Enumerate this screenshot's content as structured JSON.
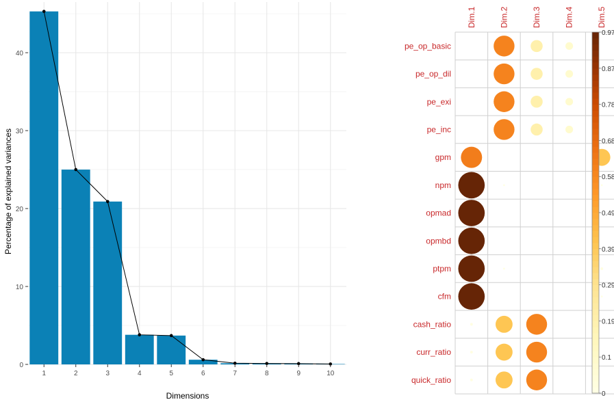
{
  "chart_data": [
    {
      "type": "bar",
      "xlabel": "Dimensions",
      "ylabel": "Percentage of explained variances",
      "categories": [
        "1",
        "2",
        "3",
        "4",
        "5",
        "6",
        "7",
        "8",
        "9",
        "10"
      ],
      "values": [
        45.3,
        25.0,
        20.9,
        3.8,
        3.7,
        0.6,
        0.15,
        0.12,
        0.1,
        0.05
      ],
      "line_overlay": true,
      "ylim": [
        0,
        46.5
      ],
      "yticks": [
        0,
        10,
        20,
        30,
        40
      ],
      "grid": true,
      "colors": {
        "bar": "#0B81B6",
        "line": "#000000"
      }
    },
    {
      "type": "heatmap",
      "style": "circle correlation plot",
      "columns": [
        "Dim.1",
        "Dim.2",
        "Dim.3",
        "Dim.4",
        "Dim.5"
      ],
      "rows": [
        "pe_op_basic",
        "pe_op_dil",
        "pe_exi",
        "pe_inc",
        "gpm",
        "npm",
        "opmad",
        "opmbd",
        "ptpm",
        "cfm",
        "cash_ratio",
        "curr_ratio",
        "quick_ratio"
      ],
      "values": [
        [
          0.0,
          0.6,
          0.2,
          0.08,
          0.0
        ],
        [
          0.0,
          0.6,
          0.2,
          0.08,
          0.0
        ],
        [
          0.0,
          0.6,
          0.2,
          0.08,
          0.0
        ],
        [
          0.0,
          0.6,
          0.2,
          0.08,
          0.0
        ],
        [
          0.62,
          0.0,
          0.0,
          0.0,
          0.4
        ],
        [
          0.97,
          0.005,
          0.0,
          0.0,
          0.005
        ],
        [
          0.97,
          0.0,
          0.0,
          0.0,
          0.0
        ],
        [
          0.97,
          0.0,
          0.0,
          0.0,
          0.0
        ],
        [
          0.97,
          0.005,
          0.0,
          0.0,
          0.01
        ],
        [
          0.97,
          0.0,
          0.0,
          0.0,
          0.005
        ],
        [
          0.01,
          0.4,
          0.6,
          0.0,
          0.0
        ],
        [
          0.01,
          0.4,
          0.6,
          0.0,
          0.0
        ],
        [
          0.01,
          0.4,
          0.6,
          0.0,
          0.0
        ]
      ],
      "colorbar_ticks": [
        "0",
        "0.1",
        "0.19",
        "0.29",
        "0.39",
        "0.49",
        "0.58",
        "0.68",
        "0.78",
        "0.87",
        "0.97"
      ],
      "colorbar_range": [
        0,
        0.97
      ],
      "colors": {
        "low": "#FFFFE5",
        "mid": "#FE9929",
        "high": "#662506",
        "label": "#C8282A"
      }
    }
  ]
}
